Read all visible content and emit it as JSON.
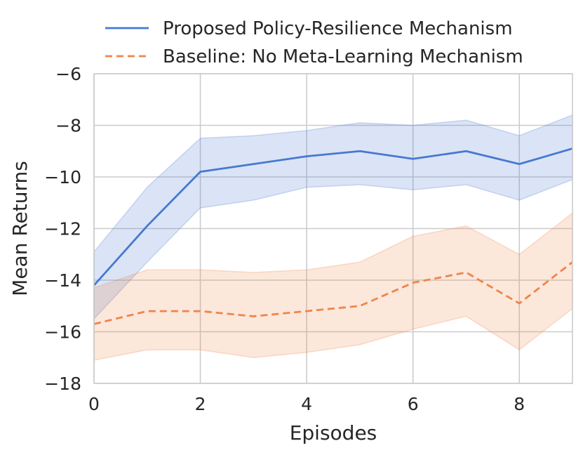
{
  "chart_data": {
    "type": "line",
    "title": "",
    "xlabel": "Episodes",
    "ylabel": "Mean Returns",
    "xlim": [
      0,
      9
    ],
    "ylim": [
      -18,
      -6
    ],
    "xticks": [
      0,
      2,
      4,
      6,
      8
    ],
    "xtick_labels": [
      "0",
      "2",
      "4",
      "6",
      "8"
    ],
    "yticks": [
      -18,
      -16,
      -14,
      -12,
      -10,
      -8,
      -6
    ],
    "ytick_labels": [
      "−18",
      "−16",
      "−14",
      "−12",
      "−10",
      "−8",
      "−6"
    ],
    "grid": true,
    "legend_position": "top",
    "x": [
      0,
      1,
      2,
      3,
      4,
      5,
      6,
      7,
      8,
      9
    ],
    "series": [
      {
        "name": "Proposed Policy-Resilience Mechanism",
        "color": "#4878d0",
        "style": "solid",
        "values": [
          -14.2,
          -11.9,
          -9.8,
          -9.5,
          -9.2,
          -9.0,
          -9.3,
          -9.0,
          -9.5,
          -8.9
        ],
        "band_upper": [
          -12.9,
          -10.4,
          -8.5,
          -8.4,
          -8.2,
          -7.9,
          -8.0,
          -7.8,
          -8.4,
          -7.6
        ],
        "band_lower": [
          -15.5,
          -13.3,
          -11.2,
          -10.9,
          -10.4,
          -10.3,
          -10.5,
          -10.3,
          -10.9,
          -10.1
        ]
      },
      {
        "name": "Baseline: No Meta-Learning Mechanism",
        "color": "#ee854a",
        "style": "dashed",
        "values": [
          -15.7,
          -15.2,
          -15.2,
          -15.4,
          -15.2,
          -15.0,
          -14.1,
          -13.7,
          -14.9,
          -13.3
        ],
        "band_upper": [
          -14.3,
          -13.6,
          -13.6,
          -13.7,
          -13.6,
          -13.3,
          -12.3,
          -11.9,
          -13.0,
          -11.4
        ],
        "band_lower": [
          -17.1,
          -16.7,
          -16.7,
          -17.0,
          -16.8,
          -16.5,
          -15.9,
          -15.4,
          -16.7,
          -15.1
        ]
      }
    ]
  }
}
